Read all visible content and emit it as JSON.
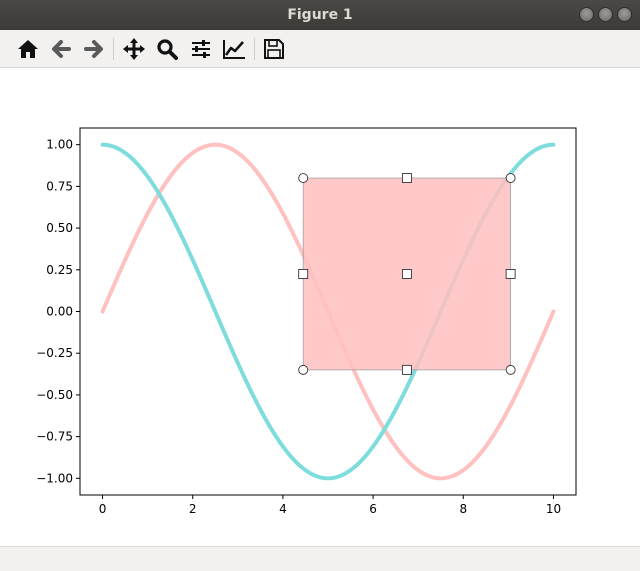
{
  "window": {
    "title": "Figure 1"
  },
  "toolbar": {
    "buttons": [
      {
        "name": "home-button",
        "icon": "home-icon"
      },
      {
        "name": "back-button",
        "icon": "arrow-left-icon"
      },
      {
        "name": "forward-button",
        "icon": "arrow-right-icon"
      },
      {
        "name": "pan-button",
        "icon": "move-icon"
      },
      {
        "name": "zoom-button",
        "icon": "magnifier-icon"
      },
      {
        "name": "subplots-button",
        "icon": "sliders-icon"
      },
      {
        "name": "edit-axes-button",
        "icon": "line-chart-icon"
      },
      {
        "name": "save-button",
        "icon": "floppy-disk-icon"
      }
    ]
  },
  "colors": {
    "cos_line": "#7fdcdc",
    "sin_line": "#ffc0c0",
    "rect_fill": "#ffbfbf"
  },
  "chart_data": {
    "type": "line",
    "xlim": [
      -0.5,
      10.5
    ],
    "ylim": [
      -1.1,
      1.1
    ],
    "xticks": [
      0,
      2,
      4,
      6,
      8,
      10
    ],
    "xtick_labels": [
      "0",
      "2",
      "4",
      "6",
      "8",
      "10"
    ],
    "yticks": [
      1.0,
      0.75,
      0.5,
      0.25,
      0.0,
      -0.25,
      -0.5,
      -0.75,
      -1.0
    ],
    "ytick_labels": [
      "1.00",
      "0.75",
      "0.50",
      "0.25",
      "0.00",
      "−0.25",
      "−0.50",
      "−0.75",
      "−1.00"
    ],
    "series": [
      {
        "function": "cos(2πx/10)",
        "x_range": [
          0,
          10
        ],
        "color": "#7fdcdc"
      },
      {
        "function": "sin(2πx/10)",
        "x_range": [
          0,
          10
        ],
        "color": "#ffc0c0"
      }
    ],
    "selector_rectangle": {
      "x0": 4.45,
      "x1": 9.05,
      "y0": -0.35,
      "y1": 0.8
    },
    "grid": false
  }
}
